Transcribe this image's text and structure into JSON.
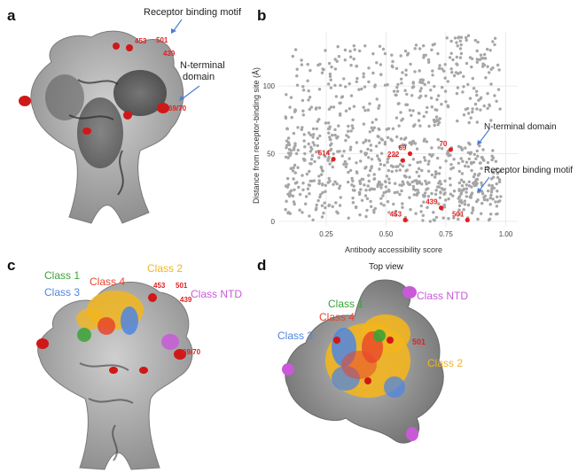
{
  "panels": {
    "a": {
      "letter": "a",
      "annotations": {
        "rbm": "Receptor binding motif",
        "ntd_line1": "N-terminal",
        "ntd_line2": "domain"
      },
      "residues": [
        "453",
        "501",
        "439",
        "69/70"
      ]
    },
    "b": {
      "letter": "b",
      "annotations": {
        "ntd": "N-terminal domain",
        "rbm": "Receptor binding motif"
      }
    },
    "c": {
      "letter": "c",
      "classes": {
        "class1": "Class 1",
        "class2": "Class 2",
        "class3": "Class 3",
        "class4": "Class 4",
        "classNTD": "Class NTD"
      },
      "residues": [
        "453",
        "501",
        "439",
        "69/70"
      ]
    },
    "d": {
      "letter": "d",
      "title": "Top view",
      "classes": {
        "class1": "Class 1",
        "class2": "Class 2",
        "class3": "Class 3",
        "class4": "Class 4",
        "classNTD": "Class NTD"
      },
      "residues": [
        "501"
      ]
    }
  },
  "colors": {
    "highlight_red": "#e02020",
    "point_gray": "#a6a6a6",
    "class1": "#3aa335",
    "class2": "#f2b51e",
    "class3": "#4f86e0",
    "class4": "#e8452a",
    "classNTD": "#c85ad8",
    "arrow_blue": "#4a7fd0"
  },
  "chart_data": {
    "type": "scatter",
    "xlabel": "Antibody accessibility score",
    "ylabel": "Distance from receptor-binding site (Å)",
    "xticks": [
      "0.25",
      "0.50",
      "0.75",
      "1.00"
    ],
    "yticks": [
      "0",
      "50",
      "100"
    ],
    "xlim": [
      0.05,
      1.05
    ],
    "ylim": [
      -4,
      140
    ],
    "grid": true,
    "highlighted": [
      {
        "label": "614",
        "x": 0.28,
        "y": 46
      },
      {
        "label": "222",
        "x": 0.57,
        "y": 45
      },
      {
        "label": "69",
        "x": 0.6,
        "y": 50
      },
      {
        "label": "70",
        "x": 0.77,
        "y": 53
      },
      {
        "label": "439",
        "x": 0.73,
        "y": 10
      },
      {
        "label": "453",
        "x": 0.58,
        "y": 1
      },
      {
        "label": "501",
        "x": 0.84,
        "y": 1
      }
    ]
  }
}
